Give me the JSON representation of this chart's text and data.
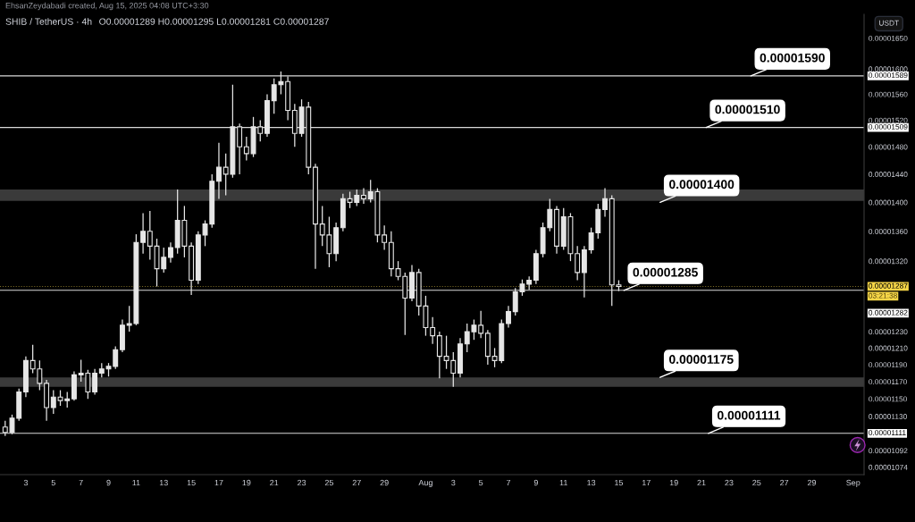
{
  "chart_data": {
    "type": "candlestick",
    "title": "SHIB / TetherUS · 4h",
    "subtitle": "O0.00001289 H0.00001295 L0.00001281 C0.00001287",
    "ylabel": "USDT",
    "color": "#e6e6e6",
    "log": "y",
    "x": [
      "2025-07-01T12:00",
      "2025-07-02T00:00",
      "2025-07-02T12:00",
      "2025-07-03T00:00",
      "2025-07-03T12:00",
      "2025-07-04T00:00",
      "2025-07-04T12:00",
      "2025-07-05T00:00",
      "2025-07-05T12:00",
      "2025-07-06T00:00",
      "2025-07-06T12:00",
      "2025-07-07T00:00",
      "2025-07-07T12:00",
      "2025-07-08T00:00",
      "2025-07-08T12:00",
      "2025-07-09T00:00",
      "2025-07-09T12:00",
      "2025-07-10T00:00",
      "2025-07-10T12:00",
      "2025-07-11T00:00",
      "2025-07-11T12:00",
      "2025-07-12T00:00",
      "2025-07-12T12:00",
      "2025-07-13T00:00",
      "2025-07-13T12:00",
      "2025-07-14T00:00",
      "2025-07-14T12:00",
      "2025-07-15T00:00",
      "2025-07-15T12:00",
      "2025-07-16T00:00",
      "2025-07-16T12:00",
      "2025-07-17T00:00",
      "2025-07-17T12:00",
      "2025-07-18T00:00",
      "2025-07-18T12:00",
      "2025-07-19T00:00",
      "2025-07-19T12:00",
      "2025-07-20T00:00",
      "2025-07-20T12:00",
      "2025-07-21T00:00",
      "2025-07-21T12:00",
      "2025-07-22T00:00",
      "2025-07-22T12:00",
      "2025-07-23T00:00",
      "2025-07-23T12:00",
      "2025-07-24T00:00",
      "2025-07-24T12:00",
      "2025-07-25T00:00",
      "2025-07-25T12:00",
      "2025-07-26T00:00",
      "2025-07-26T12:00",
      "2025-07-27T00:00",
      "2025-07-27T12:00",
      "2025-07-28T00:00",
      "2025-07-28T12:00",
      "2025-07-29T00:00",
      "2025-07-29T12:00",
      "2025-07-30T00:00",
      "2025-07-30T12:00",
      "2025-07-31T00:00",
      "2025-07-31T12:00",
      "2025-08-01T00:00",
      "2025-08-01T12:00",
      "2025-08-02T00:00",
      "2025-08-02T12:00",
      "2025-08-03T00:00",
      "2025-08-03T12:00",
      "2025-08-04T00:00",
      "2025-08-04T12:00",
      "2025-08-05T00:00",
      "2025-08-05T12:00",
      "2025-08-06T00:00",
      "2025-08-06T12:00",
      "2025-08-07T00:00",
      "2025-08-07T12:00",
      "2025-08-08T00:00",
      "2025-08-08T12:00",
      "2025-08-09T00:00",
      "2025-08-09T12:00",
      "2025-08-10T00:00",
      "2025-08-10T12:00",
      "2025-08-11T00:00",
      "2025-08-11T12:00",
      "2025-08-12T00:00",
      "2025-08-12T12:00",
      "2025-08-13T00:00",
      "2025-08-13T12:00",
      "2025-08-14T00:00",
      "2025-08-14T12:00",
      "2025-08-15T00:00"
    ],
    "ohlc": [
      [
        1.118e-05,
        1.125e-05,
        1.108e-05,
        1.112e-05
      ],
      [
        1.112e-05,
        1.132e-05,
        1.11e-05,
        1.128e-05
      ],
      [
        1.128e-05,
        1.162e-05,
        1.125e-05,
        1.158e-05
      ],
      [
        1.158e-05,
        1.2e-05,
        1.152e-05,
        1.195e-05
      ],
      [
        1.195e-05,
        1.214e-05,
        1.18e-05,
        1.185e-05
      ],
      [
        1.185e-05,
        1.195e-05,
        1.16e-05,
        1.168e-05
      ],
      [
        1.168e-05,
        1.172e-05,
        1.125e-05,
        1.14e-05
      ],
      [
        1.14e-05,
        1.16e-05,
        1.133e-05,
        1.152e-05
      ],
      [
        1.152e-05,
        1.16e-05,
        1.142e-05,
        1.148e-05
      ],
      [
        1.148e-05,
        1.158e-05,
        1.14e-05,
        1.15e-05
      ],
      [
        1.15e-05,
        1.182e-05,
        1.148e-05,
        1.178e-05
      ],
      [
        1.178e-05,
        1.196e-05,
        1.17e-05,
        1.18e-05
      ],
      [
        1.18e-05,
        1.184e-05,
        1.15e-05,
        1.158e-05
      ],
      [
        1.158e-05,
        1.185e-05,
        1.155e-05,
        1.18e-05
      ],
      [
        1.18e-05,
        1.192e-05,
        1.175e-05,
        1.185e-05
      ],
      [
        1.185e-05,
        1.192e-05,
        1.176e-05,
        1.188e-05
      ],
      [
        1.188e-05,
        1.212e-05,
        1.185e-05,
        1.208e-05
      ],
      [
        1.208e-05,
        1.245e-05,
        1.205e-05,
        1.238e-05
      ],
      [
        1.238e-05,
        1.262e-05,
        1.23e-05,
        1.24e-05
      ],
      [
        1.24e-05,
        1.356e-05,
        1.238e-05,
        1.345e-05
      ],
      [
        1.345e-05,
        1.385e-05,
        1.33e-05,
        1.36e-05
      ],
      [
        1.36e-05,
        1.388e-05,
        1.322e-05,
        1.34e-05
      ],
      [
        1.34e-05,
        1.35e-05,
        1.287e-05,
        1.31e-05
      ],
      [
        1.31e-05,
        1.338e-05,
        1.305e-05,
        1.325e-05
      ],
      [
        1.325e-05,
        1.345e-05,
        1.318e-05,
        1.338e-05
      ],
      [
        1.338e-05,
        1.418e-05,
        1.33e-05,
        1.375e-05
      ],
      [
        1.375e-05,
        1.395e-05,
        1.325e-05,
        1.34e-05
      ],
      [
        1.34e-05,
        1.345e-05,
        1.276e-05,
        1.295e-05
      ],
      [
        1.295e-05,
        1.36e-05,
        1.29e-05,
        1.355e-05
      ],
      [
        1.355e-05,
        1.375e-05,
        1.34e-05,
        1.37e-05
      ],
      [
        1.37e-05,
        1.44e-05,
        1.365e-05,
        1.43e-05
      ],
      [
        1.43e-05,
        1.486e-05,
        1.405e-05,
        1.45e-05
      ],
      [
        1.45e-05,
        1.47e-05,
        1.41e-05,
        1.44e-05
      ],
      [
        1.44e-05,
        1.575e-05,
        1.435e-05,
        1.51e-05
      ],
      [
        1.51e-05,
        1.515e-05,
        1.44e-05,
        1.48e-05
      ],
      [
        1.48e-05,
        1.495e-05,
        1.46e-05,
        1.47e-05
      ],
      [
        1.47e-05,
        1.525e-05,
        1.465e-05,
        1.51e-05
      ],
      [
        1.51e-05,
        1.52e-05,
        1.488e-05,
        1.5e-05
      ],
      [
        1.5e-05,
        1.56e-05,
        1.495e-05,
        1.55e-05
      ],
      [
        1.55e-05,
        1.585e-05,
        1.53e-05,
        1.575e-05
      ],
      [
        1.575e-05,
        1.596e-05,
        1.56e-05,
        1.58e-05
      ],
      [
        1.58e-05,
        1.588e-05,
        1.52e-05,
        1.535e-05
      ],
      [
        1.535e-05,
        1.545e-05,
        1.48e-05,
        1.5e-05
      ],
      [
        1.5e-05,
        1.552e-05,
        1.495e-05,
        1.54e-05
      ],
      [
        1.54e-05,
        1.548e-05,
        1.44e-05,
        1.45e-05
      ],
      [
        1.45e-05,
        1.455e-05,
        1.31e-05,
        1.37e-05
      ],
      [
        1.37e-05,
        1.395e-05,
        1.34e-05,
        1.355e-05
      ],
      [
        1.355e-05,
        1.38e-05,
        1.312e-05,
        1.33e-05
      ],
      [
        1.33e-05,
        1.372e-05,
        1.32e-05,
        1.365e-05
      ],
      [
        1.365e-05,
        1.412e-05,
        1.36e-05,
        1.405e-05
      ],
      [
        1.405e-05,
        1.415e-05,
        1.392e-05,
        1.4e-05
      ],
      [
        1.4e-05,
        1.418e-05,
        1.395e-05,
        1.41e-05
      ],
      [
        1.41e-05,
        1.42e-05,
        1.398e-05,
        1.405e-05
      ],
      [
        1.405e-05,
        1.432e-05,
        1.4e-05,
        1.415e-05
      ],
      [
        1.415e-05,
        1.42e-05,
        1.345e-05,
        1.355e-05
      ],
      [
        1.355e-05,
        1.368e-05,
        1.335e-05,
        1.345e-05
      ],
      [
        1.345e-05,
        1.36e-05,
        1.3e-05,
        1.31e-05
      ],
      [
        1.31e-05,
        1.32e-05,
        1.295e-05,
        1.3e-05
      ],
      [
        1.3e-05,
        1.305e-05,
        1.226e-05,
        1.272e-05
      ],
      [
        1.272e-05,
        1.315e-05,
        1.268e-05,
        1.305e-05
      ],
      [
        1.305e-05,
        1.31e-05,
        1.25e-05,
        1.262e-05
      ],
      [
        1.262e-05,
        1.275e-05,
        1.225e-05,
        1.235e-05
      ],
      [
        1.235e-05,
        1.248e-05,
        1.215e-05,
        1.225e-05
      ],
      [
        1.225e-05,
        1.23e-05,
        1.174e-05,
        1.2e-05
      ],
      [
        1.2e-05,
        1.225e-05,
        1.185e-05,
        1.195e-05
      ],
      [
        1.195e-05,
        1.205e-05,
        1.164e-05,
        1.18e-05
      ],
      [
        1.18e-05,
        1.222e-05,
        1.175e-05,
        1.215e-05
      ],
      [
        1.215e-05,
        1.24e-05,
        1.205e-05,
        1.23e-05
      ],
      [
        1.23e-05,
        1.245e-05,
        1.22e-05,
        1.238e-05
      ],
      [
        1.238e-05,
        1.256e-05,
        1.222e-05,
        1.228e-05
      ],
      [
        1.228e-05,
        1.232e-05,
        1.19e-05,
        1.2e-05
      ],
      [
        1.2e-05,
        1.21e-05,
        1.187e-05,
        1.195e-05
      ],
      [
        1.195e-05,
        1.245e-05,
        1.192e-05,
        1.24e-05
      ],
      [
        1.24e-05,
        1.262e-05,
        1.235e-05,
        1.255e-05
      ],
      [
        1.255e-05,
        1.285e-05,
        1.25e-05,
        1.28e-05
      ],
      [
        1.28e-05,
        1.296e-05,
        1.275e-05,
        1.29e-05
      ],
      [
        1.29e-05,
        1.3e-05,
        1.283e-05,
        1.295e-05
      ],
      [
        1.295e-05,
        1.335e-05,
        1.29e-05,
        1.33e-05
      ],
      [
        1.33e-05,
        1.372e-05,
        1.325e-05,
        1.365e-05
      ],
      [
        1.365e-05,
        1.405e-05,
        1.36e-05,
        1.39e-05
      ],
      [
        1.39e-05,
        1.395e-05,
        1.33e-05,
        1.34e-05
      ],
      [
        1.34e-05,
        1.392e-05,
        1.335e-05,
        1.38e-05
      ],
      [
        1.38e-05,
        1.385e-05,
        1.32e-05,
        1.33e-05
      ],
      [
        1.33e-05,
        1.34e-05,
        1.295e-05,
        1.305e-05
      ],
      [
        1.305e-05,
        1.34e-05,
        1.273e-05,
        1.335e-05
      ],
      [
        1.335e-05,
        1.365e-05,
        1.33e-05,
        1.358e-05
      ],
      [
        1.358e-05,
        1.398e-05,
        1.35e-05,
        1.39e-05
      ],
      [
        1.39e-05,
        1.42e-05,
        1.38e-05,
        1.405e-05
      ],
      [
        1.405e-05,
        1.41e-05,
        1.262e-05,
        1.289e-05
      ],
      [
        1.289e-05,
        1.295e-05,
        1.281e-05,
        1.287e-05
      ]
    ],
    "xlim": [
      "2025-07-01T03:00",
      "2025-09-01T19:00"
    ],
    "xticks": [
      {
        "value": "2025-07-03",
        "label": "3"
      },
      {
        "value": "2025-07-05",
        "label": "5"
      },
      {
        "value": "2025-07-07",
        "label": "7"
      },
      {
        "value": "2025-07-09",
        "label": "9"
      },
      {
        "value": "2025-07-11",
        "label": "11"
      },
      {
        "value": "2025-07-13",
        "label": "13"
      },
      {
        "value": "2025-07-15",
        "label": "15"
      },
      {
        "value": "2025-07-17",
        "label": "17"
      },
      {
        "value": "2025-07-19",
        "label": "19"
      },
      {
        "value": "2025-07-21",
        "label": "21"
      },
      {
        "value": "2025-07-23",
        "label": "23"
      },
      {
        "value": "2025-07-25",
        "label": "25"
      },
      {
        "value": "2025-07-27",
        "label": "27"
      },
      {
        "value": "2025-07-29",
        "label": "29"
      },
      {
        "value": "2025-08-01",
        "label": "Aug"
      },
      {
        "value": "2025-08-03",
        "label": "3"
      },
      {
        "value": "2025-08-05",
        "label": "5"
      },
      {
        "value": "2025-08-07",
        "label": "7"
      },
      {
        "value": "2025-08-09",
        "label": "9"
      },
      {
        "value": "2025-08-11",
        "label": "11"
      },
      {
        "value": "2025-08-13",
        "label": "13"
      },
      {
        "value": "2025-08-15",
        "label": "15"
      },
      {
        "value": "2025-08-17",
        "label": "17"
      },
      {
        "value": "2025-08-19",
        "label": "19"
      },
      {
        "value": "2025-08-21",
        "label": "21"
      },
      {
        "value": "2025-08-23",
        "label": "23"
      },
      {
        "value": "2025-08-25",
        "label": "25"
      },
      {
        "value": "2025-08-27",
        "label": "27"
      },
      {
        "value": "2025-08-29",
        "label": "29"
      },
      {
        "value": "2025-09-01",
        "label": "Sep"
      }
    ],
    "ylim": [
      1.066e-05,
      1.69e-05
    ],
    "yticks": [
      {
        "value": 1.65e-05,
        "label": "0.00001650"
      },
      {
        "value": 1.6e-05,
        "label": "0.00001600"
      },
      {
        "value": 1.56e-05,
        "label": "0.00001560"
      },
      {
        "value": 1.52e-05,
        "label": "0.00001520"
      },
      {
        "value": 1.48e-05,
        "label": "0.00001480"
      },
      {
        "value": 1.44e-05,
        "label": "0.00001440"
      },
      {
        "value": 1.4e-05,
        "label": "0.00001400"
      },
      {
        "value": 1.36e-05,
        "label": "0.00001360"
      },
      {
        "value": 1.32e-05,
        "label": "0.00001320"
      },
      {
        "value": 1.23e-05,
        "label": "0.00001230"
      },
      {
        "value": 1.21e-05,
        "label": "0.00001210"
      },
      {
        "value": 1.19e-05,
        "label": "0.00001190"
      },
      {
        "value": 1.17e-05,
        "label": "0.00001170"
      },
      {
        "value": 1.15e-05,
        "label": "0.00001150"
      },
      {
        "value": 1.13e-05,
        "label": "0.00001130"
      },
      {
        "value": 1.092e-05,
        "label": "0.00001092"
      },
      {
        "value": 1.074e-05,
        "label": "0.00001074"
      }
    ],
    "bands": [
      {
        "axis": "y",
        "from": 1.402e-05,
        "to": 1.418e-05,
        "color": "#3a3a3a"
      },
      {
        "axis": "y",
        "from": 1.164e-05,
        "to": 1.175e-05,
        "color": "#3a3a3a"
      }
    ],
    "ref_lines": [
      {
        "axis": "y",
        "value": 1.589e-05,
        "label": "0.00001589",
        "color": "#ffffff"
      },
      {
        "axis": "y",
        "value": 1.509e-05,
        "label": "0.00001509",
        "color": "#ffffff"
      },
      {
        "axis": "y",
        "value": 1.287e-05,
        "label": "0.00001287",
        "color": "#f5d547",
        "line_style": "dotted"
      },
      {
        "axis": "y",
        "value": 1.282e-05,
        "label": "0.00001282",
        "color": "#ffffff"
      },
      {
        "axis": "y",
        "value": 1.111e-05,
        "label": "0.00001111",
        "color": "#ffffff"
      }
    ],
    "annotations": [
      "EhsanZeydabadi created, Aug 15, 2025 04:08 UTC+3:30",
      "03:21:38",
      {
        "text": "0.00001590",
        "x": "2025-08-24T14:00",
        "y": 1.589e-05
      },
      {
        "text": "0.00001510",
        "x": "2025-08-21T08:00",
        "y": 1.509e-05
      },
      {
        "text": "0.00001400",
        "x": "2025-08-18T00:00",
        "y": 1.4e-05
      },
      {
        "text": "0.00001285",
        "x": "2025-08-15T09:00",
        "y": 1.282e-05
      },
      {
        "text": "0.00001175",
        "x": "2025-08-18T00:00",
        "y": 1.175e-05
      },
      {
        "text": "0.00001111",
        "x": "2025-08-21T12:00",
        "y": 1.111e-05
      }
    ]
  }
}
